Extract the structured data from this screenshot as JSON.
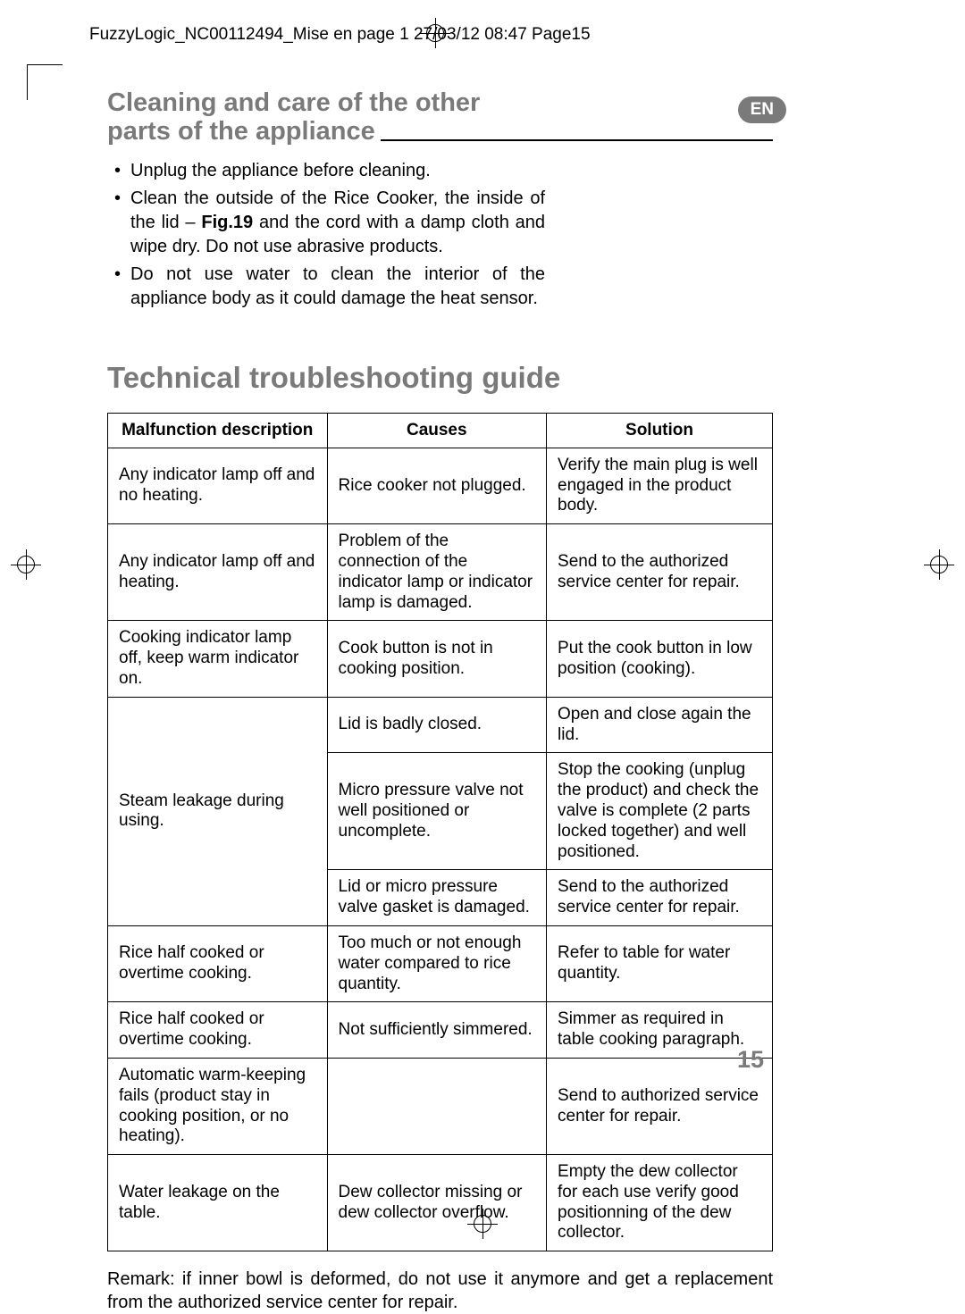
{
  "header": {
    "text": "FuzzyLogic_NC00112494_Mise en page 1   27/03/12  08:47  Page15"
  },
  "lang_badge": "EN",
  "section1": {
    "title_line1": "Cleaning and care of the other",
    "title_line2": " parts of the appliance",
    "bullets": [
      {
        "prefix": "",
        "text": "Unplug the appliance before cleaning."
      },
      {
        "prefix": "",
        "text_a": "Clean the outside of the Rice Cooker, the inside of the lid – ",
        "bold": "Fig.19",
        "text_b": " and the cord with a damp cloth and wipe dry. Do not use abrasive products."
      },
      {
        "prefix": "",
        "text": "Do not use water to clean the interior of the appliance body as it could damage the heat sensor."
      }
    ]
  },
  "section2": {
    "title": "Technical troubleshooting guide",
    "columns": [
      "Malfunction description",
      "Causes",
      "Solution"
    ],
    "rows": [
      {
        "mal": "Any indicator lamp off and no heating.",
        "cause": "Rice cooker not plugged.",
        "sol": "Verify the main plug is well engaged in the product body."
      },
      {
        "mal": "Any indicator lamp off and heating.",
        "cause": "Problem of the connection of the indicator lamp or indicator lamp is damaged.",
        "sol": "Send to the authorized service center for repair."
      },
      {
        "mal": "Cooking indicator lamp off, keep warm indicator on.",
        "cause": "Cook button is not in cooking position.",
        "sol": "Put the cook button in low position (cooking)."
      },
      {
        "mal": "Steam leakage during using.",
        "mal_rowspan": 3,
        "cause": "Lid is badly closed.",
        "sol": "Open and close again the lid."
      },
      {
        "cause": "Micro pressure valve not well positioned or uncomplete.",
        "sol": "Stop the cooking (unplug the product) and check the valve is complete (2 parts locked together) and well positioned."
      },
      {
        "cause": "Lid or micro pressure valve gasket is damaged.",
        "sol": "Send to the authorized service center for repair."
      },
      {
        "mal": "Rice half cooked or overtime cooking.",
        "cause": "Too much or not enough water compared to rice quantity.",
        "sol": "Refer to table for water quantity."
      },
      {
        "mal": "Rice half cooked or overtime cooking.",
        "cause": "Not sufficiently simmered.",
        "sol": "Simmer as required in table cooking paragraph."
      },
      {
        "mal": "Automatic warm-keeping fails (product stay in cooking position, or no heating).",
        "cause": "",
        "sol": "Send to authorized service center for repair."
      },
      {
        "mal": "Water leakage on the table.",
        "cause": "Dew collector missing or dew collector overflow.",
        "sol": "Empty the dew collector for each use verify good positionning of the dew collector."
      }
    ],
    "remark": "Remark: if inner bowl is deformed, do not use it anymore and get a replacement from the authorized service center for repair."
  },
  "page_number": "15"
}
